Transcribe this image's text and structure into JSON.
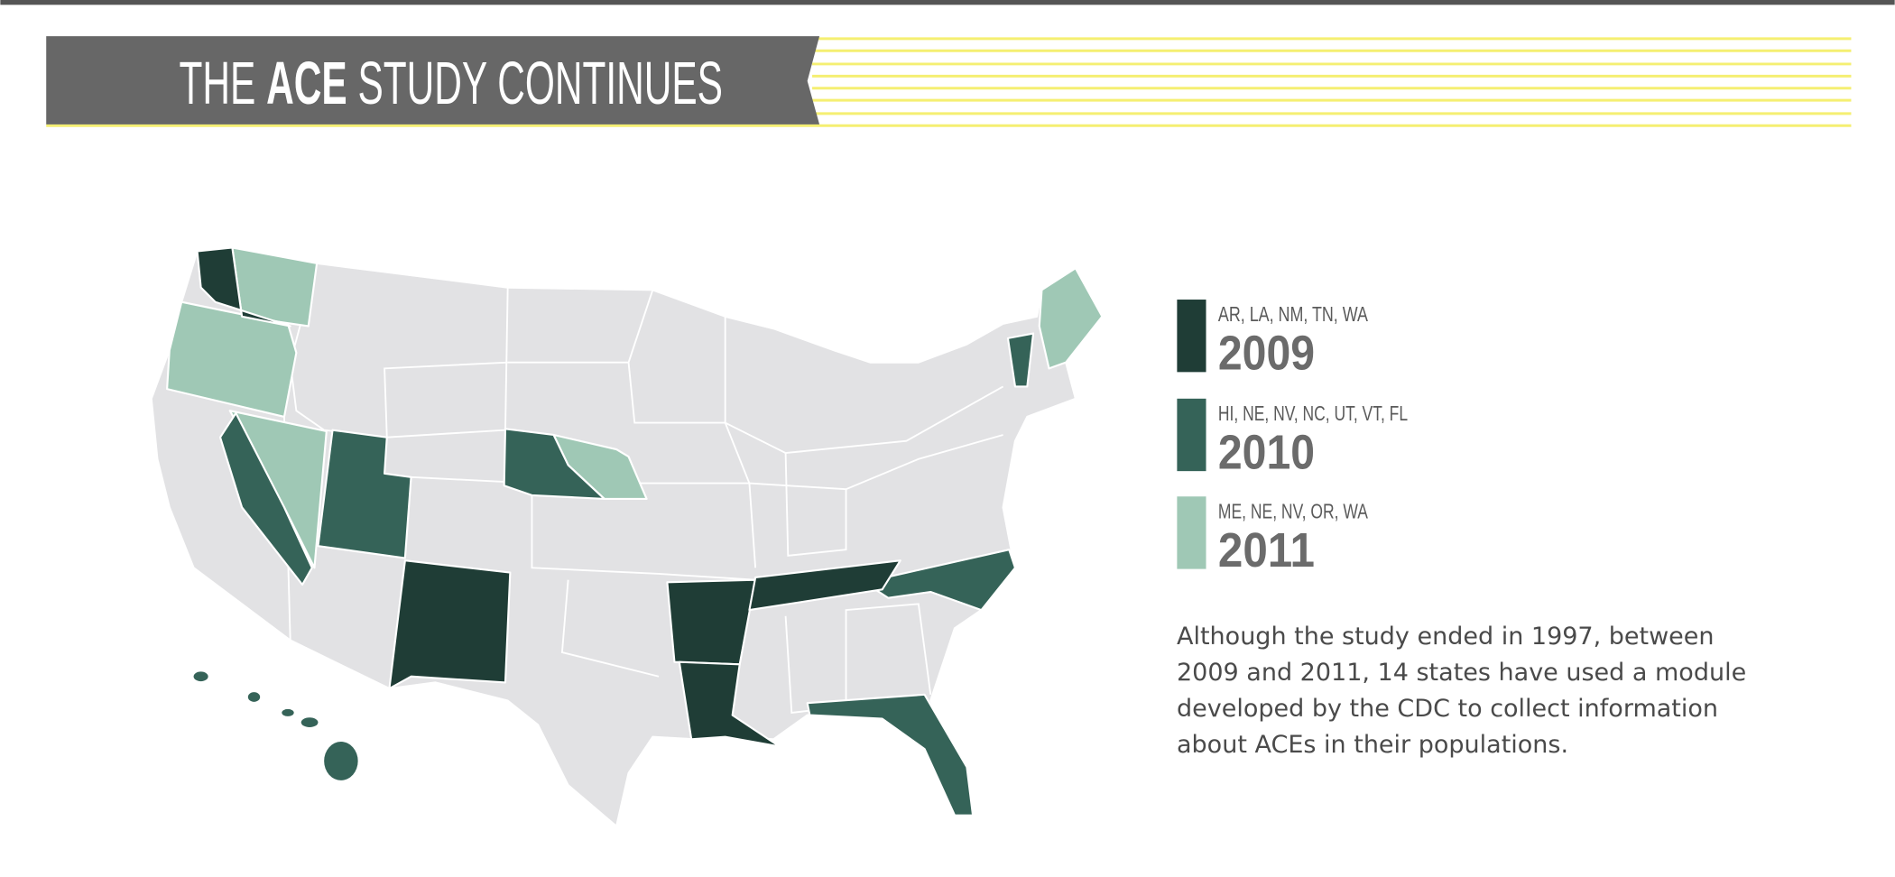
{
  "header": {
    "title": {
      "before": "THE",
      "emphasis": "ACE",
      "after": "STUDY CONTINUES"
    }
  },
  "legend": [
    {
      "states": "AR, LA, NM, TN, WA",
      "year": "2009"
    },
    {
      "states": "HI, NE, NV, NC, UT, VT, FL",
      "year": "2010"
    },
    {
      "states": "ME, NE, NV, OR, WA",
      "year": "2011"
    }
  ],
  "body": {
    "text": "Although the study ended in 1997, between 2009 and 2011, 14 states have used a module developed by the CDC to collect information about ACEs in their populations."
  }
}
